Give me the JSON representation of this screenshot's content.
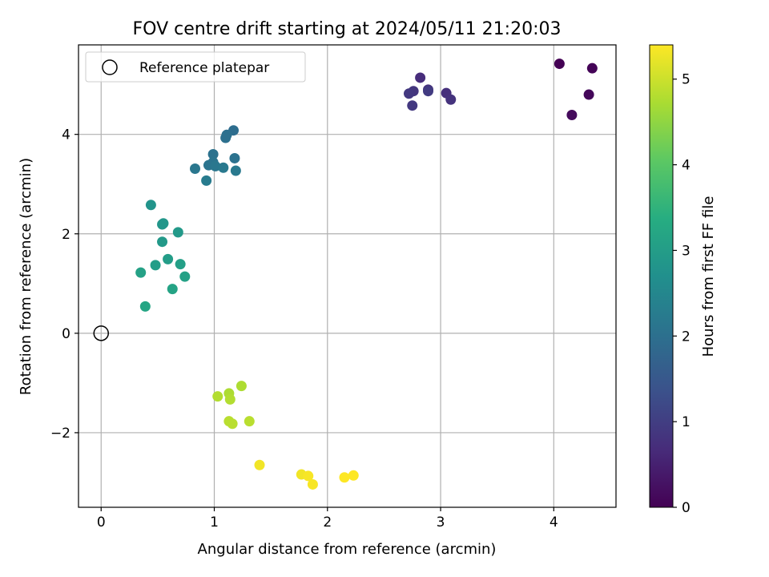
{
  "chart_data": {
    "type": "scatter",
    "title": "FOV centre drift starting at 2024/05/11 21:20:03",
    "xlabel": "Angular distance from reference (arcmin)",
    "ylabel": "Rotation from reference (arcmin)",
    "xlim": [
      -0.2,
      4.55
    ],
    "ylim": [
      -3.5,
      5.8
    ],
    "xticks": [
      0,
      1,
      2,
      3,
      4
    ],
    "xtick_labels": [
      "0",
      "1",
      "2",
      "3",
      "4"
    ],
    "yticks": [
      -2,
      0,
      2,
      4
    ],
    "ytick_labels": [
      "−2",
      "0",
      "2",
      "4"
    ],
    "grid": true,
    "legend": {
      "position": "top-left",
      "entries": [
        "Reference platepar"
      ]
    },
    "reference_point": {
      "x": 0,
      "y": 0,
      "label": "Reference platepar"
    },
    "colorbar": {
      "label": "Hours from first FF file",
      "colormap": "viridis",
      "range": [
        0,
        5.4
      ],
      "ticks": [
        0,
        1,
        2,
        3,
        4,
        5
      ],
      "tick_labels": [
        "0",
        "1",
        "2",
        "3",
        "4",
        "5"
      ]
    },
    "points": [
      {
        "x": 4.05,
        "y": 5.42,
        "c": 0.0
      },
      {
        "x": 4.34,
        "y": 5.33,
        "c": 0.05
      },
      {
        "x": 4.31,
        "y": 4.8,
        "c": 0.1
      },
      {
        "x": 4.16,
        "y": 4.39,
        "c": 0.15
      },
      {
        "x": 2.82,
        "y": 5.14,
        "c": 0.7
      },
      {
        "x": 3.05,
        "y": 4.83,
        "c": 0.75
      },
      {
        "x": 3.09,
        "y": 4.7,
        "c": 0.8
      },
      {
        "x": 2.89,
        "y": 4.9,
        "c": 0.8
      },
      {
        "x": 2.76,
        "y": 4.87,
        "c": 0.85
      },
      {
        "x": 2.72,
        "y": 4.82,
        "c": 0.9
      },
      {
        "x": 2.75,
        "y": 4.58,
        "c": 0.9
      },
      {
        "x": 2.89,
        "y": 4.87,
        "c": 0.95
      },
      {
        "x": 1.17,
        "y": 4.08,
        "c": 1.95
      },
      {
        "x": 1.11,
        "y": 3.99,
        "c": 2.0
      },
      {
        "x": 1.1,
        "y": 3.93,
        "c": 2.0
      },
      {
        "x": 0.99,
        "y": 3.6,
        "c": 2.05
      },
      {
        "x": 1.18,
        "y": 3.52,
        "c": 2.05
      },
      {
        "x": 0.99,
        "y": 3.44,
        "c": 2.1
      },
      {
        "x": 0.95,
        "y": 3.38,
        "c": 2.1
      },
      {
        "x": 1.01,
        "y": 3.36,
        "c": 2.15
      },
      {
        "x": 0.83,
        "y": 3.31,
        "c": 2.15
      },
      {
        "x": 1.08,
        "y": 3.33,
        "c": 2.2
      },
      {
        "x": 1.19,
        "y": 3.27,
        "c": 2.2
      },
      {
        "x": 0.93,
        "y": 3.07,
        "c": 2.25
      },
      {
        "x": 0.44,
        "y": 2.58,
        "c": 2.8
      },
      {
        "x": 0.55,
        "y": 2.21,
        "c": 2.85
      },
      {
        "x": 0.54,
        "y": 2.19,
        "c": 2.85
      },
      {
        "x": 0.68,
        "y": 2.03,
        "c": 2.9
      },
      {
        "x": 0.54,
        "y": 1.84,
        "c": 2.9
      },
      {
        "x": 0.59,
        "y": 1.49,
        "c": 3.0
      },
      {
        "x": 0.48,
        "y": 1.37,
        "c": 3.0
      },
      {
        "x": 0.7,
        "y": 1.39,
        "c": 3.05
      },
      {
        "x": 0.35,
        "y": 1.22,
        "c": 3.1
      },
      {
        "x": 0.74,
        "y": 1.14,
        "c": 3.1
      },
      {
        "x": 0.63,
        "y": 0.89,
        "c": 3.15
      },
      {
        "x": 0.39,
        "y": 0.54,
        "c": 3.2
      },
      {
        "x": 1.24,
        "y": -1.06,
        "c": 4.75
      },
      {
        "x": 1.13,
        "y": -1.21,
        "c": 4.75
      },
      {
        "x": 1.03,
        "y": -1.27,
        "c": 4.8
      },
      {
        "x": 1.14,
        "y": -1.33,
        "c": 4.8
      },
      {
        "x": 1.13,
        "y": -1.77,
        "c": 4.85
      },
      {
        "x": 1.16,
        "y": -1.82,
        "c": 4.85
      },
      {
        "x": 1.31,
        "y": -1.77,
        "c": 4.85
      },
      {
        "x": 1.4,
        "y": -2.65,
        "c": 5.3
      },
      {
        "x": 1.77,
        "y": -2.84,
        "c": 5.3
      },
      {
        "x": 1.83,
        "y": -2.87,
        "c": 5.35
      },
      {
        "x": 1.87,
        "y": -3.04,
        "c": 5.35
      },
      {
        "x": 2.15,
        "y": -2.9,
        "c": 5.4
      },
      {
        "x": 2.23,
        "y": -2.86,
        "c": 5.4
      }
    ]
  }
}
